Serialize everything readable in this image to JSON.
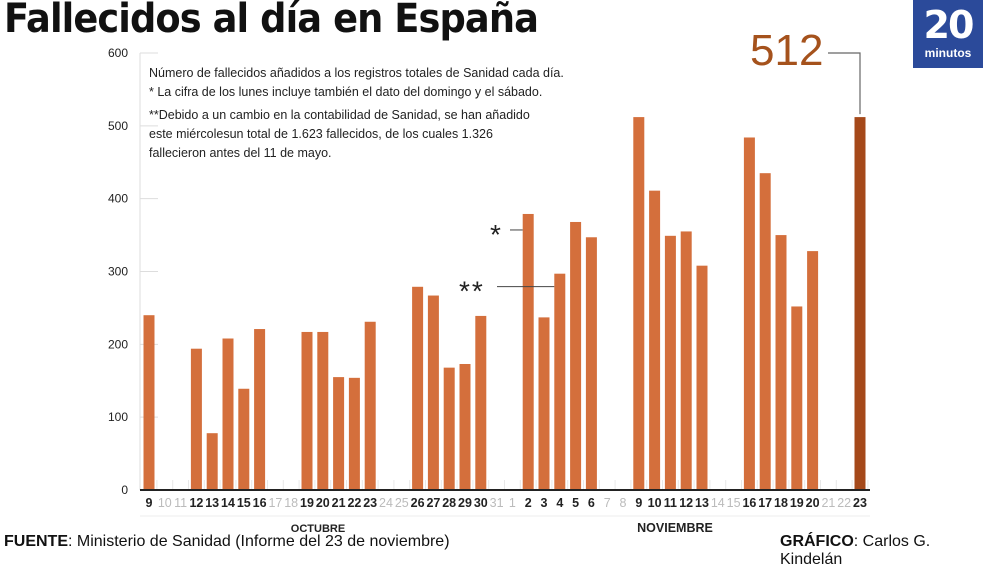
{
  "header": {
    "title": "Fallecidos al día en España",
    "logo_number": "20",
    "logo_text": "minutos"
  },
  "notes": {
    "line1": "Número de fallecidos añadidos a los registros totales de Sanidad cada día.",
    "line2": "* La cifra de los lunes incluye también el dato del domingo y el sábado.",
    "line3": "**Debido a un cambio en la contabilidad de Sanidad, se han añadido",
    "line4": "este miércolesun total de 1.623 fallecidos, de los cuales 1.326",
    "line5": "fallecieron antes del 11 de mayo."
  },
  "highlight": {
    "label": "512",
    "color": "#a5521c"
  },
  "footer": {
    "source_label": "FUENTE",
    "source_text": ": Ministerio de Sanidad (Informe del 23 de noviembre)",
    "credit_label": "GRÁFICO",
    "credit_text": ": Carlos G. Kindelán"
  },
  "colors": {
    "bar": "#d46f3c",
    "bar_highlight": "#a5491a",
    "axis": "#222222",
    "grid": "#dddddd",
    "weekend_label": "#bbbbbb"
  },
  "chart_data": {
    "type": "bar",
    "title": "Fallecidos al día en España",
    "xlabel": "",
    "ylabel": "",
    "ylim": [
      0,
      600
    ],
    "yticks": [
      0,
      100,
      200,
      300,
      400,
      500,
      600
    ],
    "grid": true,
    "months": [
      {
        "label": "OCTUBRE",
        "from": "9",
        "to": "31"
      },
      {
        "label": "NOVIEMBRE",
        "from": "1",
        "to": "23"
      }
    ],
    "annotations": [
      {
        "text": "*",
        "category_index": 24
      },
      {
        "text": "**",
        "category_index": 26
      }
    ],
    "categories": [
      "9",
      "10",
      "11",
      "12",
      "13",
      "14",
      "15",
      "16",
      "17",
      "18",
      "19",
      "20",
      "21",
      "22",
      "23",
      "24",
      "25",
      "26",
      "27",
      "28",
      "29",
      "30",
      "31",
      "1",
      "2",
      "3",
      "4",
      "5",
      "6",
      "7",
      "8",
      "9",
      "10",
      "11",
      "12",
      "13",
      "14",
      "15",
      "16",
      "17",
      "18",
      "19",
      "20",
      "21",
      "22",
      "23"
    ],
    "weekend": [
      false,
      true,
      true,
      false,
      false,
      false,
      false,
      false,
      true,
      true,
      false,
      false,
      false,
      false,
      false,
      true,
      true,
      false,
      false,
      false,
      false,
      false,
      true,
      true,
      false,
      false,
      false,
      false,
      false,
      true,
      true,
      false,
      false,
      false,
      false,
      false,
      true,
      true,
      false,
      false,
      false,
      false,
      false,
      true,
      true,
      false
    ],
    "values": [
      240,
      null,
      null,
      194,
      78,
      208,
      139,
      221,
      null,
      null,
      217,
      217,
      155,
      154,
      231,
      null,
      null,
      279,
      267,
      168,
      173,
      239,
      null,
      null,
      379,
      237,
      297,
      368,
      347,
      null,
      null,
      512,
      411,
      349,
      355,
      308,
      null,
      null,
      484,
      435,
      350,
      252,
      328,
      null,
      null,
      512
    ]
  }
}
